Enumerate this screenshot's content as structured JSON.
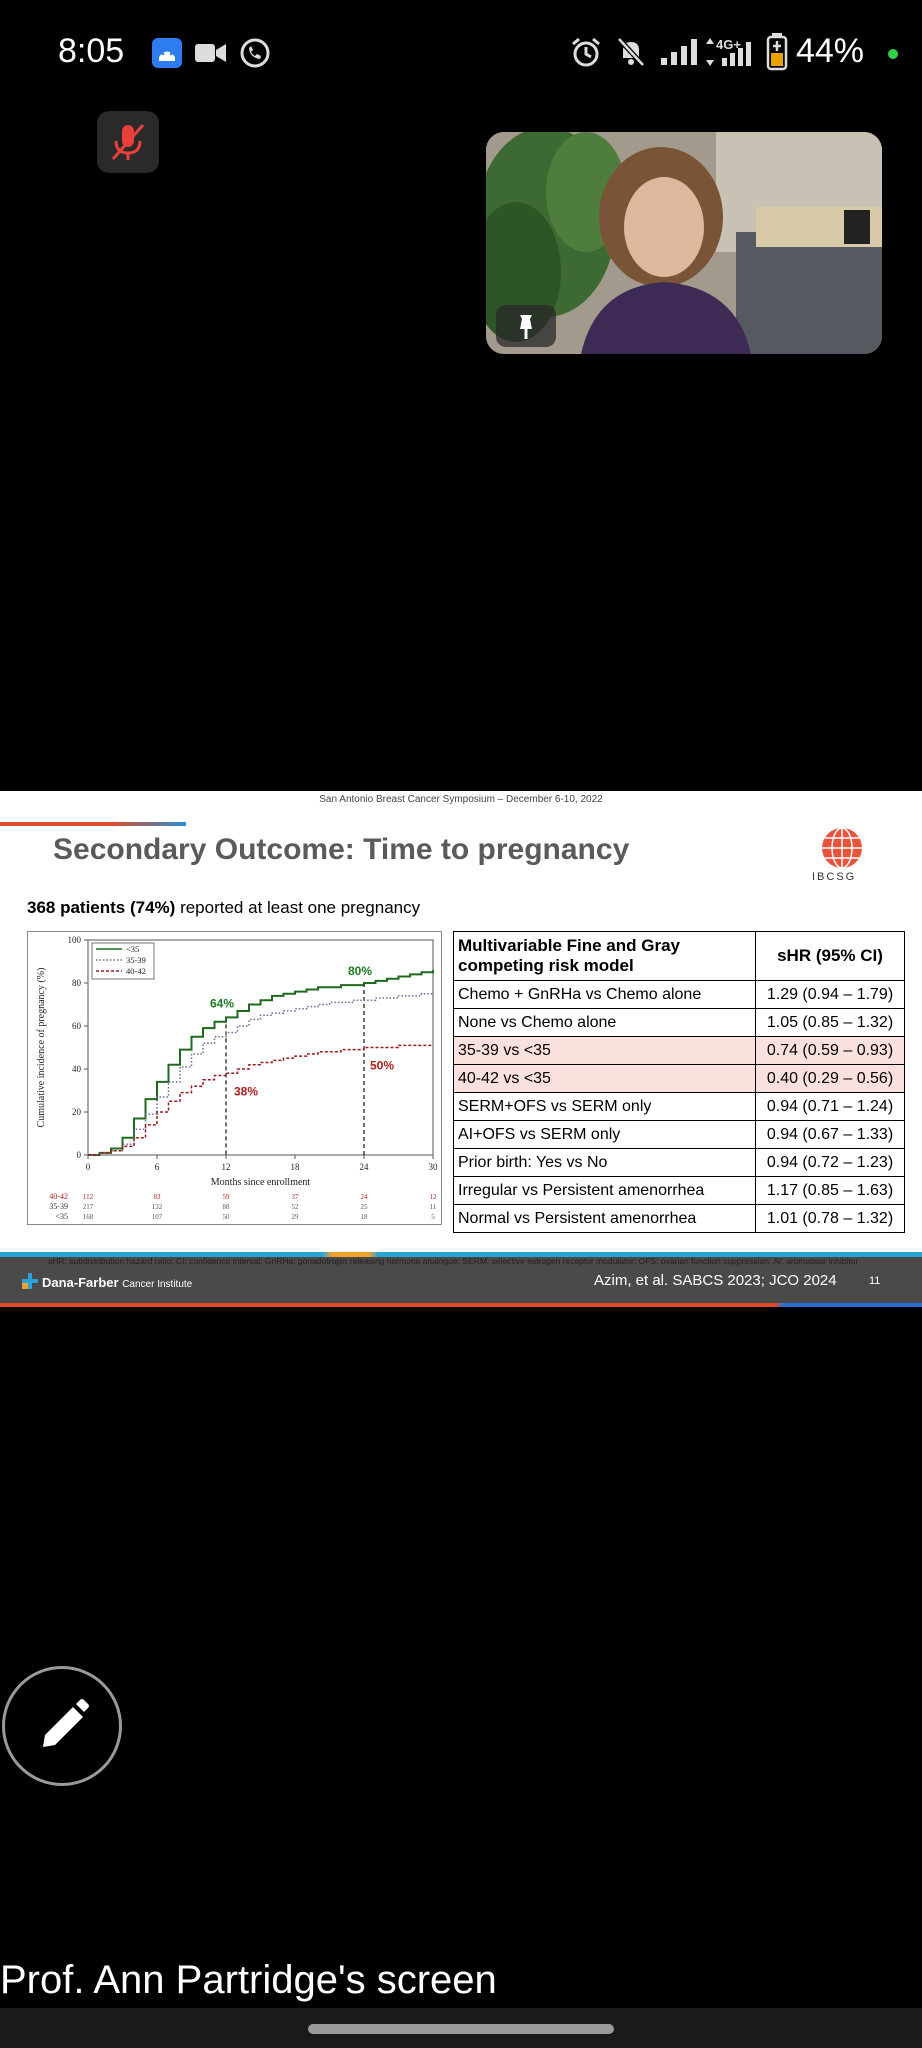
{
  "status_bar": {
    "time": "8:05",
    "battery": "44%",
    "network": "4G+",
    "icons": [
      "android-auto-icon",
      "video-camera-icon",
      "phone-voip-icon",
      "alarm-icon",
      "bell-muted-icon",
      "signal-icon",
      "data-arrows-icon",
      "battery-charging-icon"
    ]
  },
  "call": {
    "mic_state": "muted",
    "presenter_label": "Prof. Ann Partridge's screen"
  },
  "slide": {
    "symposium": "San Antonio Breast Cancer Symposium – December 6-10, 2022",
    "title": "Secondary Outcome:  Time to pregnancy",
    "logo_text": "IBCSG",
    "patients_bold": "368 patients (74%)",
    "patients_rest": " reported at least one pregnancy",
    "footnote": "sHR: subdistribution hazard ratio; CI: confidence interval; GnRHa: gonadotropin releasing hormone analogue; SERM: selective estrogen receptor modulator; OFS: ovarian function suppression; AI: aromatase inhibitor",
    "institution": "Dana-Farber",
    "institution_sub": "Cancer Institute",
    "citation": "Azim, et al. SABCS 2023; JCO 2024",
    "page_number": "11",
    "table": {
      "header_model": "Multivariable Fine and Gray competing risk model",
      "header_value": "sHR (95% CI)",
      "rows": [
        {
          "label": "Chemo + GnRHa vs Chemo alone",
          "value": "1.29 (0.94 – 1.79)",
          "highlight": false
        },
        {
          "label": "None vs Chemo alone",
          "value": "1.05 (0.85 – 1.32)",
          "highlight": false
        },
        {
          "label": "35-39 vs <35",
          "value": "0.74 (0.59 – 0.93)",
          "highlight": true
        },
        {
          "label": "40-42 vs <35",
          "value": "0.40 (0.29 – 0.56)",
          "highlight": true
        },
        {
          "label": "SERM+OFS vs SERM only",
          "value": "0.94 (0.71 – 1.24)",
          "highlight": false
        },
        {
          "label": "AI+OFS vs SERM only",
          "value": "0.94 (0.67 – 1.33)",
          "highlight": false
        },
        {
          "label": "Prior birth: Yes vs No",
          "value": "0.94 (0.72 – 1.23)",
          "highlight": false
        },
        {
          "label": "Irregular vs Persistent amenorrhea",
          "value": "1.17 (0.85 – 1.63)",
          "highlight": false
        },
        {
          "label": "Normal vs Persistent amenorrhea",
          "value": "1.01 (0.78 – 1.32)",
          "highlight": false
        }
      ]
    }
  },
  "chart_data": {
    "type": "line",
    "xlabel": "Months since enrollment",
    "ylabel": "Cumulative incidence of pregnancy (%)",
    "xlim": [
      0,
      30
    ],
    "ylim": [
      0,
      100
    ],
    "xticks": [
      "0",
      "6",
      "12",
      "18",
      "24",
      "30"
    ],
    "yticks": [
      "0",
      "20",
      "40",
      "60",
      "80",
      "100"
    ],
    "legend_position": "top-left",
    "series": [
      {
        "name": "<35",
        "color": "#1e6b1e",
        "style": "solid",
        "x": [
          0,
          1,
          2,
          3,
          4,
          5,
          6,
          7,
          8,
          9,
          10,
          11,
          12,
          13,
          14,
          15,
          16,
          17,
          18,
          19,
          20,
          21,
          22,
          23,
          24,
          25,
          26,
          27,
          28,
          29,
          30
        ],
        "y": [
          0,
          1,
          3,
          8,
          17,
          26,
          34,
          42,
          49,
          55,
          59,
          62,
          64,
          67,
          70,
          72,
          74,
          75,
          76,
          77,
          78,
          78,
          79,
          79,
          80,
          81,
          82,
          83,
          84,
          85,
          86
        ]
      },
      {
        "name": "35-39",
        "color": "#6a6a9a",
        "style": "dotted",
        "x": [
          0,
          1,
          2,
          3,
          4,
          5,
          6,
          7,
          8,
          9,
          10,
          11,
          12,
          13,
          14,
          15,
          16,
          17,
          18,
          19,
          20,
          21,
          22,
          23,
          24,
          25,
          26,
          27,
          28,
          29,
          30
        ],
        "y": [
          0,
          1,
          2,
          5,
          12,
          19,
          27,
          34,
          41,
          47,
          52,
          55,
          57,
          60,
          63,
          65,
          66,
          67,
          68,
          69,
          70,
          71,
          71,
          72,
          72,
          73,
          73,
          74,
          74,
          75,
          75
        ]
      },
      {
        "name": "40-42",
        "color": "#9b1b1b",
        "style": "dashed",
        "x": [
          0,
          1,
          2,
          3,
          4,
          5,
          6,
          7,
          8,
          9,
          10,
          11,
          12,
          13,
          14,
          15,
          16,
          17,
          18,
          19,
          20,
          21,
          22,
          23,
          24,
          25,
          26,
          27,
          28,
          29,
          30
        ],
        "y": [
          0,
          1,
          2,
          4,
          8,
          14,
          20,
          25,
          29,
          32,
          35,
          37,
          38,
          40,
          42,
          43,
          44,
          45,
          46,
          47,
          48,
          48,
          49,
          49,
          50,
          50,
          50,
          51,
          51,
          51,
          51
        ]
      }
    ],
    "annotations": [
      {
        "text": "64%",
        "x": 12,
        "y": 64,
        "color": "#1e7b1e"
      },
      {
        "text": "80%",
        "x": 24,
        "y": 80,
        "color": "#1e7b1e"
      },
      {
        "text": "38%",
        "x": 12,
        "y": 38,
        "color": "#b01e1e"
      },
      {
        "text": "50%",
        "x": 24,
        "y": 50,
        "color": "#b01e1e"
      }
    ],
    "at_risk": [
      {
        "name": "40-42",
        "color": "#b01e1e",
        "values": [
          "112",
          "83",
          "59",
          "37",
          "24",
          "12"
        ]
      },
      {
        "name": "35-39",
        "color": "#333333",
        "values": [
          "217",
          "132",
          "88",
          "52",
          "25",
          "11"
        ]
      },
      {
        "name": "<35",
        "color": "#333333",
        "values": [
          "168",
          "107",
          "50",
          "29",
          "18",
          "5"
        ]
      }
    ]
  }
}
